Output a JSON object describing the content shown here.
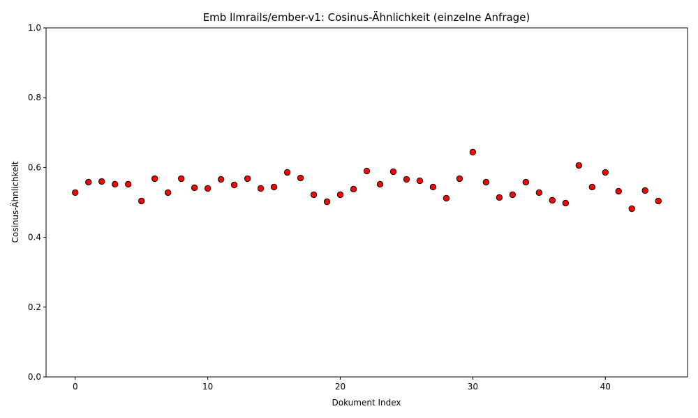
{
  "chart_data": {
    "type": "scatter",
    "title": "Emb llmrails/ember-v1: Cosinus-Ähnlichkeit (einzelne Anfrage)",
    "xlabel": "Dokument Index",
    "ylabel": "Cosinus-Ähnlichkeit",
    "xlim": [
      -2.2,
      46.2
    ],
    "ylim": [
      0,
      1
    ],
    "xticks": [
      0,
      10,
      20,
      30,
      40
    ],
    "yticks": [
      0.0,
      0.2,
      0.4,
      0.6,
      0.8,
      1.0
    ],
    "grid": false,
    "marker_color": "#ff0000",
    "marker_edge_color": "#000000",
    "x": [
      0,
      1,
      2,
      3,
      4,
      5,
      6,
      7,
      8,
      9,
      10,
      11,
      12,
      13,
      14,
      15,
      16,
      17,
      18,
      19,
      20,
      21,
      22,
      23,
      24,
      25,
      26,
      27,
      28,
      29,
      30,
      31,
      32,
      33,
      34,
      35,
      36,
      37,
      38,
      39,
      40,
      41,
      42,
      43,
      44
    ],
    "y": [
      0.528,
      0.558,
      0.56,
      0.552,
      0.552,
      0.504,
      0.568,
      0.528,
      0.568,
      0.542,
      0.54,
      0.566,
      0.55,
      0.568,
      0.54,
      0.544,
      0.586,
      0.57,
      0.522,
      0.502,
      0.522,
      0.538,
      0.59,
      0.552,
      0.588,
      0.566,
      0.562,
      0.544,
      0.512,
      0.568,
      0.644,
      0.558,
      0.514,
      0.522,
      0.558,
      0.528,
      0.506,
      0.498,
      0.606,
      0.544,
      0.586,
      0.532,
      0.482,
      0.534,
      0.504
    ]
  }
}
